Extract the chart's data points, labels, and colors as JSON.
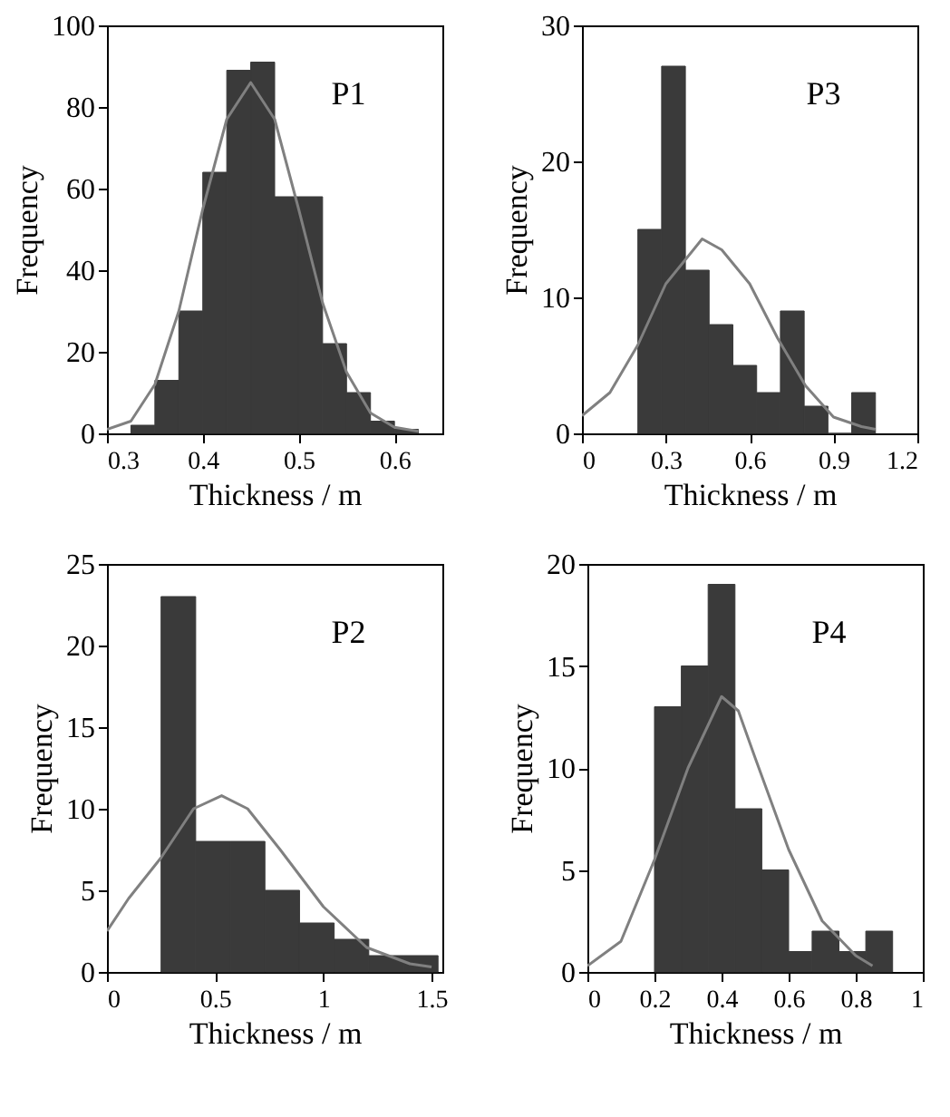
{
  "chart_data": [
    {
      "type": "histogram",
      "xlabel": "Thickness / m",
      "ylabel": "Frequency",
      "annotations": [
        "P1"
      ],
      "color": "#3a3a3a",
      "bins": [
        0.325,
        0.35,
        0.375,
        0.4,
        0.425,
        0.45,
        0.475,
        0.5,
        0.525,
        0.55,
        0.575,
        0.6,
        0.625
      ],
      "values": [
        2,
        13,
        30,
        64,
        89,
        91,
        58,
        58,
        22,
        10,
        3,
        1
      ],
      "series": [
        {
          "type": "line",
          "color": "#808080",
          "x": [
            0.3,
            0.325,
            0.35,
            0.375,
            0.4,
            0.425,
            0.45,
            0.475,
            0.5,
            0.525,
            0.55,
            0.575,
            0.6,
            0.625
          ],
          "values": [
            1,
            3,
            12,
            30,
            55,
            77,
            86,
            77,
            55,
            32,
            15,
            5,
            1.5,
            0.5
          ]
        }
      ],
      "xlim": [
        0.3,
        0.65
      ],
      "xticks": [
        0.3,
        0.4,
        0.5,
        0.6
      ],
      "ylim": [
        0,
        100
      ],
      "yticks": [
        0,
        20,
        40,
        60,
        80,
        100
      ],
      "grid": false
    },
    {
      "type": "histogram",
      "xlabel": "Thickness / m",
      "ylabel": "Frequency",
      "annotations": [
        "P3"
      ],
      "color": "#3a3a3a",
      "bins": [
        0.2,
        0.285,
        0.37,
        0.455,
        0.54,
        0.625,
        0.71,
        0.795,
        0.88,
        0.965,
        1.05
      ],
      "values": [
        15,
        27,
        12,
        8,
        5,
        3,
        9,
        2,
        0,
        3
      ],
      "series": [
        {
          "type": "line",
          "color": "#808080",
          "x": [
            0,
            0.1,
            0.2,
            0.3,
            0.43,
            0.5,
            0.6,
            0.7,
            0.8,
            0.9,
            1.0,
            1.05
          ],
          "values": [
            1.3,
            3,
            6.5,
            11,
            14.3,
            13.5,
            11,
            7,
            3.5,
            1.2,
            0.5,
            0.3
          ]
        }
      ],
      "xlim": [
        0,
        1.2
      ],
      "xticks": [
        0,
        0.3,
        0.6,
        0.9,
        1.2
      ],
      "ylim": [
        0,
        30
      ],
      "yticks": [
        0,
        10,
        20,
        30
      ],
      "grid": false
    },
    {
      "type": "histogram",
      "xlabel": "Thickness / m",
      "ylabel": "Frequency",
      "annotations": [
        "P2"
      ],
      "color": "#3a3a3a",
      "bins": [
        0.25,
        0.41,
        0.57,
        0.73,
        0.89,
        1.05,
        1.21,
        1.37,
        1.53
      ],
      "values": [
        23,
        8,
        8,
        5,
        3,
        2,
        1,
        1
      ],
      "series": [
        {
          "type": "line",
          "color": "#808080",
          "x": [
            0,
            0.1,
            0.25,
            0.4,
            0.53,
            0.65,
            0.8,
            1.0,
            1.2,
            1.4,
            1.5
          ],
          "values": [
            2.5,
            4.5,
            7,
            10,
            10.8,
            10,
            7.5,
            4,
            1.5,
            0.5,
            0.3
          ]
        }
      ],
      "xlim": [
        0,
        1.55
      ],
      "xticks": [
        0,
        0.5,
        1,
        1.5
      ],
      "ylim": [
        0,
        25
      ],
      "yticks": [
        0,
        5,
        10,
        15,
        20,
        25
      ],
      "grid": false
    },
    {
      "type": "histogram",
      "xlabel": "Thickness / m",
      "ylabel": "Frequency",
      "annotations": [
        "P4"
      ],
      "color": "#3a3a3a",
      "bins": [
        0.2,
        0.28,
        0.36,
        0.44,
        0.52,
        0.6,
        0.67,
        0.75,
        0.83,
        0.91
      ],
      "values": [
        13,
        15,
        19,
        8,
        5,
        1,
        2,
        1,
        2
      ],
      "series": [
        {
          "type": "line",
          "color": "#808080",
          "x": [
            0,
            0.1,
            0.2,
            0.3,
            0.4,
            0.45,
            0.5,
            0.6,
            0.7,
            0.8,
            0.85
          ],
          "values": [
            0.3,
            1.5,
            5.5,
            10,
            13.5,
            12.8,
            10.5,
            6,
            2.5,
            0.8,
            0.3
          ]
        }
      ],
      "xlim": [
        0,
        1
      ],
      "xticks": [
        0,
        0.2,
        0.4,
        0.6,
        0.8,
        1
      ],
      "ylim": [
        0,
        20
      ],
      "yticks": [
        0,
        5,
        10,
        15,
        20
      ],
      "grid": false
    }
  ]
}
